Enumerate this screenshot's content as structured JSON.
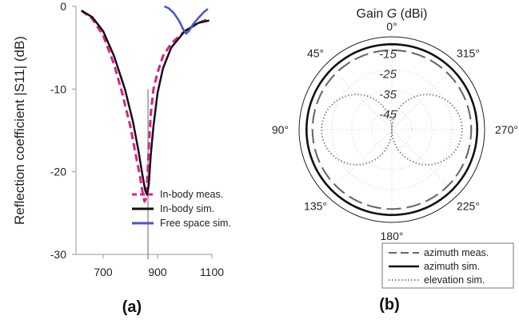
{
  "chart_data": [
    {
      "type": "line",
      "panel_label": "(a)",
      "ylabel": "Reflection coefficient |S11| (dB)",
      "xlim": [
        600,
        1100
      ],
      "ylim": [
        -30,
        0
      ],
      "xticks": [
        "700",
        "900",
        "1100"
      ],
      "yticks": [
        "0",
        "-10",
        "-20",
        "-30"
      ],
      "marker_x": 865,
      "legend_position": "lower-right",
      "series": [
        {
          "name": "In-body meas.",
          "color": "#e0208a",
          "style": "dashed",
          "x": [
            620,
            660,
            700,
            740,
            770,
            800,
            820,
            835,
            845,
            852,
            857,
            862,
            868,
            875,
            885,
            900,
            920,
            950,
            1000,
            1050,
            1090
          ],
          "y": [
            -0.5,
            -1.5,
            -3.5,
            -7,
            -10.5,
            -14.5,
            -18,
            -20.5,
            -22.5,
            -23.6,
            -23.3,
            -21,
            -17,
            -13,
            -10,
            -8,
            -6,
            -4.5,
            -3,
            -2,
            -1.5
          ]
        },
        {
          "name": "In-body sim.",
          "color": "#111111",
          "style": "solid",
          "x": [
            620,
            660,
            700,
            740,
            780,
            810,
            830,
            845,
            855,
            862,
            868,
            875,
            885,
            900,
            920,
            950,
            1000,
            1050,
            1090
          ],
          "y": [
            -0.5,
            -1.3,
            -3,
            -6,
            -10,
            -14,
            -17.5,
            -20.5,
            -22.3,
            -22.8,
            -21.5,
            -18,
            -14.5,
            -10.5,
            -7.5,
            -5,
            -3,
            -2,
            -1.7
          ]
        },
        {
          "name": "Free space sim.",
          "color": "#4455cc",
          "style": "solid",
          "x": [
            925,
            940,
            960,
            980,
            995,
            1005,
            1015,
            1030,
            1050,
            1070,
            1085
          ],
          "y": [
            0,
            -0.2,
            -0.8,
            -1.8,
            -2.8,
            -3.3,
            -3.0,
            -2.2,
            -1.4,
            -0.7,
            -0.3
          ]
        }
      ]
    },
    {
      "type": "polar",
      "panel_label": "(b)",
      "title_prefix": "Gain ",
      "title_symbol": "G",
      "title_unit": " (dBi)",
      "rmin": -55,
      "rmax": -10,
      "ring_labels": [
        {
          "text": "-15",
          "value": -15
        },
        {
          "text": "-25",
          "value": -25
        },
        {
          "text": "-35",
          "value": -35
        },
        {
          "text": "-45",
          "value": -45
        }
      ],
      "angle_labels": [
        "0°",
        "45°",
        "90°",
        "135°",
        "180°",
        "225°",
        "270°",
        "315°"
      ],
      "legend_position": "bottom-right",
      "series": [
        {
          "name": "azimuth meas.",
          "color": "#666666",
          "style": "dashed",
          "kind": "dash-circle",
          "gain": -15.5
        },
        {
          "name": "azimuth sim.",
          "color": "#111111",
          "style": "solid",
          "kind": "circle",
          "gain": -12.5
        },
        {
          "name": "elevation sim.",
          "color": "#888888",
          "style": "dotted",
          "kind": "figure-eight",
          "gain": -20
        }
      ]
    }
  ]
}
